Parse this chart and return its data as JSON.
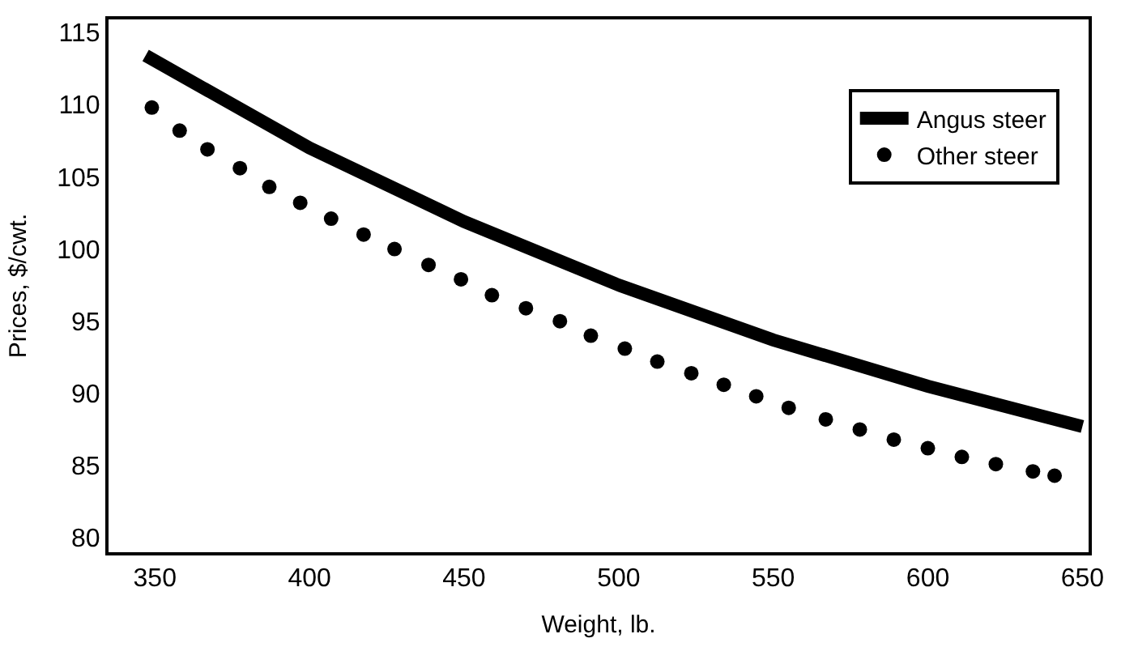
{
  "chart_data": {
    "type": "line",
    "xlabel": "Weight, lb.",
    "ylabel": "Prices, $/cwt.",
    "xlim": [
      335,
      652
    ],
    "ylim": [
      79,
      115.9
    ],
    "xticks": [
      350,
      400,
      450,
      500,
      550,
      600,
      650
    ],
    "yticks": [
      80,
      85,
      90,
      95,
      100,
      105,
      110,
      115
    ],
    "grid": false,
    "legend": "top right",
    "series": [
      {
        "name": "Angus steer",
        "color": "#000000",
        "line_style": "solid",
        "marker": "none",
        "x": [
          347,
          400,
          450,
          500,
          550,
          600,
          650
        ],
        "values": [
          113.4,
          107.0,
          101.9,
          97.5,
          93.7,
          90.5,
          87.7
        ]
      },
      {
        "name": "Other steer",
        "type": "scatter",
        "color": "#000000",
        "marker": "circle",
        "x": [
          349,
          358,
          367,
          377.5,
          387,
          397,
          407,
          417.5,
          427.5,
          438.5,
          449,
          459,
          470,
          481,
          491,
          502,
          512.5,
          523.5,
          534,
          544.5,
          555,
          567,
          578,
          589,
          600,
          611,
          622,
          634,
          641
        ],
        "values": [
          109.8,
          108.2,
          106.9,
          105.6,
          104.3,
          103.2,
          102.1,
          101.0,
          100.0,
          98.9,
          97.9,
          96.8,
          95.9,
          95.0,
          94.0,
          93.1,
          92.2,
          91.4,
          90.6,
          89.8,
          89.0,
          88.2,
          87.5,
          86.8,
          86.2,
          85.6,
          85.1,
          84.6,
          84.3
        ]
      }
    ]
  }
}
